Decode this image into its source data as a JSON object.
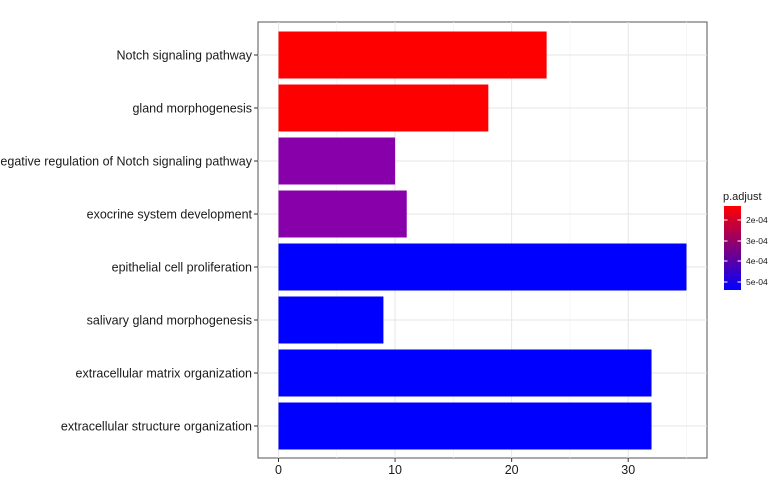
{
  "chart_data": {
    "type": "bar",
    "orientation": "horizontal",
    "categories": [
      "Notch signaling pathway",
      "gland morphogenesis",
      "negative regulation of Notch signaling pathway",
      "exocrine system development",
      "epithelial cell proliferation",
      "salivary gland morphogenesis",
      "extracellular matrix organization",
      "extracellular structure organization"
    ],
    "values": [
      23,
      18,
      10,
      11,
      35,
      9,
      32,
      32
    ],
    "bar_colors": [
      "#ff0000",
      "#ff0000",
      "#8800aa",
      "#8800aa",
      "#0000ff",
      "#0000ff",
      "#0000ff",
      "#0000ff"
    ],
    "xlim": [
      0,
      36
    ],
    "xticks": [
      "0",
      "10",
      "20",
      "30"
    ],
    "xtick_values": [
      0,
      10,
      20,
      30
    ],
    "grid": true,
    "legend": {
      "title": "p.adjust",
      "position": "right",
      "ticks": [
        "2e-04",
        "3e-04",
        "4e-04",
        "5e-04"
      ],
      "color_low": "#ff0000",
      "color_high": "#0000ff"
    }
  }
}
